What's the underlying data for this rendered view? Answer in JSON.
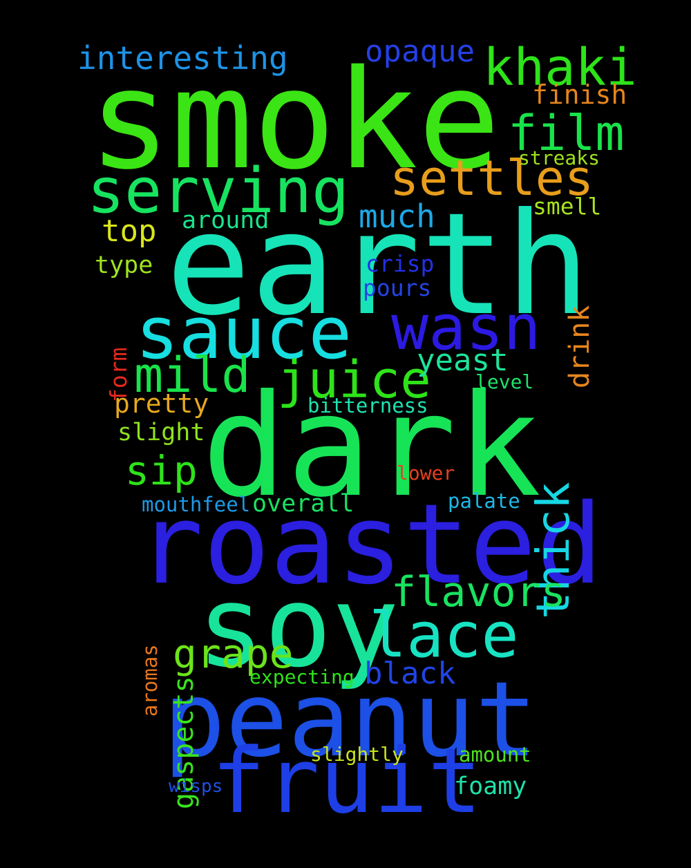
{
  "words": {
    "smoke": {
      "text": "smoke",
      "color": "#3BE414"
    },
    "earth": {
      "text": "earth",
      "color": "#17E3B8"
    },
    "dark": {
      "text": "dark",
      "color": "#17E357"
    },
    "roasted": {
      "text": "roasted",
      "color": "#2B1FE0"
    },
    "soy": {
      "text": "soy",
      "color": "#18E39A"
    },
    "peanut": {
      "text": "peanut",
      "color": "#1C50E6"
    },
    "fruit": {
      "text": "fruit",
      "color": "#1E3FE6"
    },
    "sauce": {
      "text": "sauce",
      "color": "#17DEE0"
    },
    "serving": {
      "text": "serving",
      "color": "#17E360"
    },
    "wasn": {
      "text": "wasn",
      "color": "#2C1AE3"
    },
    "lace": {
      "text": "lace",
      "color": "#17E3C3"
    },
    "juice": {
      "text": "juice",
      "color": "#2EE31A"
    },
    "khaki": {
      "text": "khaki",
      "color": "#2EE31A"
    },
    "film": {
      "text": "film",
      "color": "#19E34A"
    },
    "settles": {
      "text": "settles",
      "color": "#E89E1C"
    },
    "mild": {
      "text": "mild",
      "color": "#19E34A"
    },
    "thick": {
      "text": "thick",
      "color": "#17D6E3"
    },
    "flavors": {
      "text": "flavors",
      "color": "#19E360"
    },
    "grape": {
      "text": "grape",
      "color": "#6BE31A"
    },
    "sip": {
      "text": "sip",
      "color": "#2EE31A"
    },
    "interesting": {
      "text": "interesting",
      "color": "#1E93E6"
    },
    "opaque": {
      "text": "opaque",
      "color": "#2440E6"
    },
    "much": {
      "text": "much",
      "color": "#1EA8E6"
    },
    "top": {
      "text": "top",
      "color": "#D9E61E"
    },
    "yeast": {
      "text": "yeast",
      "color": "#1EE39A"
    },
    "black": {
      "text": "black",
      "color": "#2044E6"
    },
    "pretty": {
      "text": "pretty",
      "color": "#E6A81E"
    },
    "finish": {
      "text": "finish",
      "color": "#E6861E"
    },
    "slight": {
      "text": "slight",
      "color": "#8FE31E"
    },
    "overall": {
      "text": "overall",
      "color": "#19E360"
    },
    "type": {
      "text": "type",
      "color": "#9FE31E"
    },
    "around": {
      "text": "around",
      "color": "#19E38A"
    },
    "crisp": {
      "text": "crisp",
      "color": "#2430E6"
    },
    "pours": {
      "text": "pours",
      "color": "#2444E6"
    },
    "foamy": {
      "text": "foamy",
      "color": "#1EE3A8"
    },
    "smell": {
      "text": "smell",
      "color": "#A8E31E"
    },
    "drink": {
      "text": "drink",
      "color": "#E6861E"
    },
    "gaspects": {
      "text": "gaspects",
      "color": "#3AE31E"
    },
    "form": {
      "text": "form",
      "color": "#E62A1E"
    },
    "aromas": {
      "text": "aromas",
      "color": "#E6761E"
    },
    "mouthfeel": {
      "text": "mouthfeel",
      "color": "#1E9AE6"
    },
    "palate": {
      "text": "palate",
      "color": "#1EB8E6"
    },
    "amount": {
      "text": "amount",
      "color": "#4EE31E"
    },
    "bitterness": {
      "text": "bitterness",
      "color": "#1EE3B0"
    },
    "level": {
      "text": "level",
      "color": "#1EE36A"
    },
    "lower": {
      "text": "lower",
      "color": "#E6401E"
    },
    "streaks": {
      "text": "streaks",
      "color": "#9FE31E"
    },
    "expecting": {
      "text": "expecting",
      "color": "#2EE31A"
    },
    "slightly": {
      "text": "slightly",
      "color": "#C8E31E"
    },
    "wisps": {
      "text": "wisps",
      "color": "#2050E6"
    }
  }
}
